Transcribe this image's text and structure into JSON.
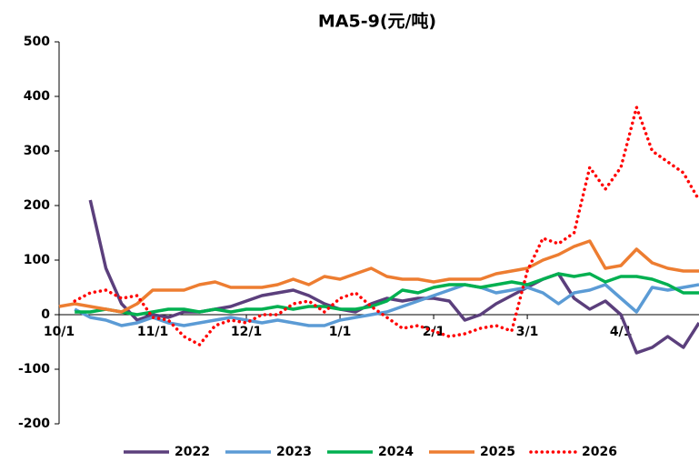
{
  "chart_data": {
    "type": "line",
    "title": "MA5-9(元/吨)",
    "categories": [
      "10/1",
      null,
      null,
      null,
      null,
      null,
      "11/1",
      null,
      null,
      null,
      null,
      null,
      "12/1",
      null,
      null,
      null,
      null,
      null,
      "1/1",
      null,
      null,
      null,
      null,
      null,
      "2/1",
      null,
      null,
      null,
      null,
      null,
      "3/1",
      null,
      null,
      null,
      null,
      null,
      "4/1",
      null,
      null,
      null,
      null,
      null
    ],
    "ylim": [
      -200,
      500
    ],
    "yticks": [
      -200,
      -100,
      0,
      100,
      200,
      300,
      400,
      500
    ],
    "grid": false,
    "legend": "bottom",
    "series": [
      {
        "name": "2022",
        "color": "#5b3f7c",
        "dash": false,
        "values": [
          null,
          null,
          210,
          85,
          20,
          -10,
          0,
          -5,
          5,
          5,
          10,
          15,
          25,
          35,
          40,
          45,
          35,
          20,
          10,
          5,
          20,
          30,
          25,
          30,
          30,
          25,
          -10,
          0,
          20,
          35,
          50,
          65,
          75,
          30,
          10,
          25,
          0,
          -70,
          -60,
          -40,
          -60,
          -15
        ]
      },
      {
        "name": "2023",
        "color": "#5b9bd5",
        "dash": false,
        "values": [
          null,
          10,
          -5,
          -10,
          -20,
          -15,
          -5,
          -15,
          -20,
          -15,
          -10,
          -5,
          -10,
          -15,
          -10,
          -15,
          -20,
          -20,
          -10,
          -5,
          0,
          5,
          15,
          25,
          35,
          45,
          55,
          50,
          40,
          45,
          50,
          40,
          20,
          40,
          45,
          55,
          30,
          5,
          50,
          45,
          50,
          55
        ]
      },
      {
        "name": "2024",
        "color": "#00b050",
        "dash": false,
        "values": [
          null,
          5,
          5,
          10,
          5,
          0,
          5,
          10,
          10,
          5,
          10,
          5,
          10,
          10,
          15,
          10,
          15,
          15,
          10,
          10,
          15,
          25,
          45,
          40,
          50,
          55,
          55,
          50,
          55,
          60,
          55,
          65,
          75,
          70,
          75,
          60,
          70,
          70,
          65,
          55,
          40,
          40
        ]
      },
      {
        "name": "2025",
        "color": "#ed7d31",
        "dash": false,
        "values": [
          15,
          20,
          15,
          10,
          5,
          20,
          45,
          45,
          45,
          55,
          60,
          50,
          50,
          50,
          55,
          65,
          55,
          70,
          65,
          75,
          85,
          70,
          65,
          65,
          60,
          65,
          65,
          65,
          75,
          80,
          85,
          100,
          110,
          125,
          135,
          85,
          90,
          120,
          95,
          85,
          80,
          80
        ]
      },
      {
        "name": "2026",
        "color": "#ff0000",
        "dash": true,
        "values": [
          null,
          25,
          40,
          45,
          30,
          35,
          -5,
          -10,
          -40,
          -55,
          -20,
          -10,
          -15,
          0,
          0,
          20,
          25,
          5,
          30,
          40,
          15,
          -5,
          -25,
          -20,
          -30,
          -40,
          -35,
          -25,
          -20,
          -30,
          80,
          140,
          130,
          150,
          270,
          230,
          270,
          380,
          300,
          280,
          260,
          210
        ]
      }
    ]
  }
}
